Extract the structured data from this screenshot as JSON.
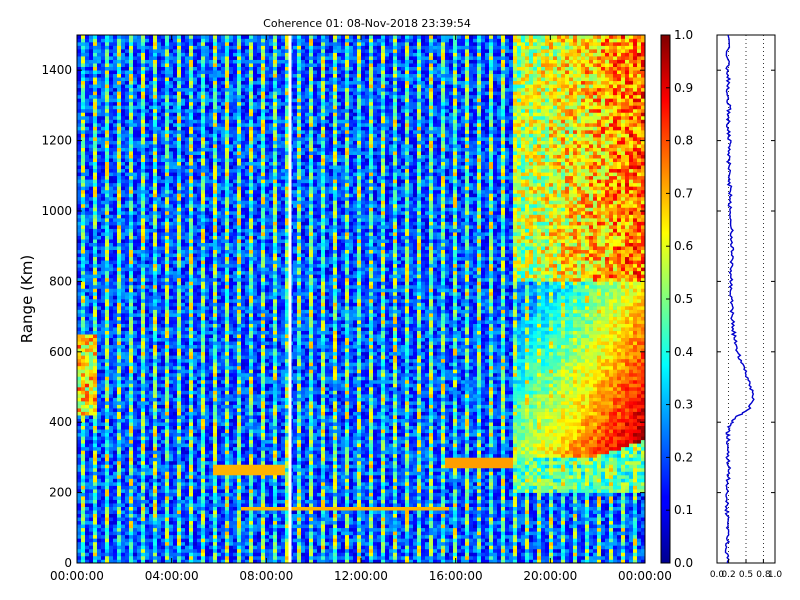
{
  "chart_data": [
    {
      "type": "heatmap",
      "title": "Coherence 01: 08-Nov-2018 23:39:54",
      "xlabel": "",
      "ylabel": "Range (Km)",
      "x_ticks": [
        "00:00:00",
        "04:00:00",
        "08:00:00",
        "12:00:00",
        "16:00:00",
        "20:00:00",
        "00:00:00"
      ],
      "xlim_hours": [
        0,
        24
      ],
      "y_ticks": [
        0,
        200,
        400,
        600,
        800,
        1000,
        1200,
        1400
      ],
      "ylim": [
        0,
        1500
      ],
      "colorbar": {
        "colormap": "jet",
        "range": [
          0.0,
          1.0
        ],
        "ticks": [
          "0.0",
          "0.1",
          "0.2",
          "0.3",
          "0.4",
          "0.5",
          "0.6",
          "0.7",
          "0.8",
          "0.9",
          "1.0"
        ]
      },
      "features": {
        "gap_hour": 9.0,
        "early_blob": {
          "hours": [
            0,
            0.8
          ],
          "range_km": [
            420,
            650
          ],
          "value": 0.8
        },
        "low_band_left": {
          "hours": [
            5.8,
            8.8
          ],
          "range_km": [
            240,
            290
          ],
          "value": 0.75
        },
        "low_band_right": {
          "hours": [
            15.6,
            18.5
          ],
          "range_km": [
            270,
            300
          ],
          "value": 0.75
        },
        "band_150km": {
          "hours": [
            7.0,
            15.8
          ],
          "range_km": [
            145,
            160
          ],
          "value": 0.72
        },
        "evening_region": {
          "hours": [
            18.5,
            24
          ],
          "range_km": [
            300,
            1500
          ],
          "value": 0.9
        }
      }
    },
    {
      "type": "line",
      "title": "",
      "xlabel": "",
      "ylabel": "",
      "x_ticks": [
        "0.0",
        "0.2",
        "0.5",
        "0.8",
        "1.0"
      ],
      "xlim": [
        0,
        1
      ],
      "ylim": [
        0,
        1500
      ],
      "x": [
        0.18,
        0.17,
        0.18,
        0.18,
        0.19,
        0.17,
        0.17,
        0.18,
        0.19,
        0.2,
        0.19,
        0.2,
        0.18,
        0.2,
        0.25,
        0.38,
        0.56,
        0.63,
        0.58,
        0.52,
        0.45,
        0.38,
        0.33,
        0.29,
        0.27,
        0.26,
        0.25,
        0.24,
        0.24,
        0.23,
        0.25,
        0.26,
        0.24,
        0.25,
        0.23,
        0.22,
        0.23,
        0.22,
        0.21,
        0.2,
        0.21,
        0.22,
        0.2,
        0.19,
        0.21,
        0.2,
        0.19,
        0.2,
        0.18,
        0.19,
        0.19
      ],
      "y": [
        0,
        30,
        60,
        90,
        120,
        150,
        180,
        210,
        240,
        270,
        300,
        330,
        360,
        380,
        400,
        420,
        440,
        470,
        500,
        530,
        560,
        590,
        620,
        650,
        680,
        710,
        740,
        770,
        800,
        830,
        860,
        890,
        920,
        950,
        980,
        1010,
        1040,
        1070,
        1100,
        1130,
        1160,
        1190,
        1220,
        1250,
        1280,
        1310,
        1340,
        1370,
        1400,
        1430,
        1500
      ]
    }
  ]
}
